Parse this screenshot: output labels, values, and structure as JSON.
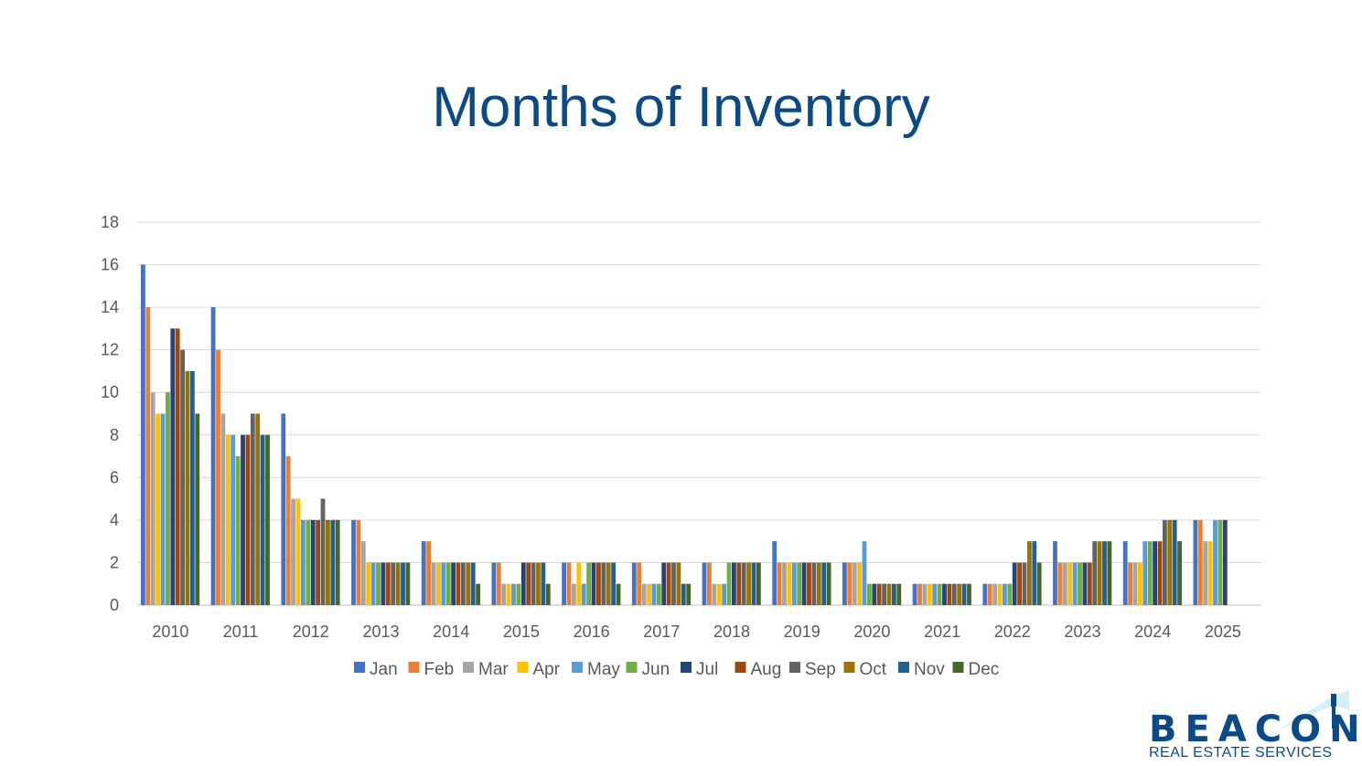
{
  "title": "Months of Inventory",
  "logo": {
    "wordmark": "BEACON",
    "tagline": "REAL ESTATE SERVICES"
  },
  "chart_data": {
    "type": "bar",
    "title": "Months of Inventory",
    "xlabel": "",
    "ylabel": "",
    "ylim": [
      0,
      18
    ],
    "yticks": [
      0,
      2,
      4,
      6,
      8,
      10,
      12,
      14,
      16,
      18
    ],
    "grid": true,
    "legend": "bottom",
    "categories": [
      "2010",
      "2011",
      "2012",
      "2013",
      "2014",
      "2015",
      "2016",
      "2017",
      "2018",
      "2019",
      "2020",
      "2021",
      "2022",
      "2023",
      "2024",
      "2025"
    ],
    "series": [
      {
        "name": "Jan",
        "color": "#4472c4",
        "values": [
          16,
          14,
          9,
          4,
          3,
          2,
          2,
          2,
          2,
          3,
          2,
          1,
          1,
          3,
          3,
          4
        ]
      },
      {
        "name": "Feb",
        "color": "#ed7d31",
        "values": [
          14,
          12,
          7,
          4,
          3,
          2,
          2,
          2,
          2,
          2,
          2,
          1,
          1,
          2,
          2,
          4
        ]
      },
      {
        "name": "Mar",
        "color": "#a5a5a5",
        "values": [
          10,
          9,
          5,
          3,
          2,
          1,
          1,
          1,
          1,
          2,
          2,
          1,
          1,
          2,
          2,
          3
        ]
      },
      {
        "name": "Apr",
        "color": "#ffc000",
        "values": [
          9,
          8,
          5,
          2,
          2,
          1,
          2,
          1,
          1,
          2,
          2,
          1,
          1,
          2,
          2,
          3
        ]
      },
      {
        "name": "May",
        "color": "#5b9bd5",
        "values": [
          9,
          8,
          4,
          2,
          2,
          1,
          1,
          1,
          1,
          2,
          3,
          1,
          1,
          2,
          3,
          4
        ]
      },
      {
        "name": "Jun",
        "color": "#70ad47",
        "values": [
          10,
          7,
          4,
          2,
          2,
          1,
          2,
          1,
          2,
          2,
          1,
          1,
          1,
          2,
          3,
          4
        ]
      },
      {
        "name": "Jul",
        "color": "#264478",
        "values": [
          13,
          8,
          4,
          2,
          2,
          2,
          2,
          2,
          2,
          2,
          1,
          1,
          2,
          2,
          3,
          4
        ]
      },
      {
        "name": "Aug",
        "color": "#9e480e",
        "values": [
          13,
          8,
          4,
          2,
          2,
          2,
          2,
          2,
          2,
          2,
          1,
          1,
          2,
          2,
          3,
          null
        ]
      },
      {
        "name": "Sep",
        "color": "#636363",
        "values": [
          12,
          9,
          5,
          2,
          2,
          2,
          2,
          2,
          2,
          2,
          1,
          1,
          2,
          3,
          4,
          null
        ]
      },
      {
        "name": "Oct",
        "color": "#997300",
        "values": [
          11,
          9,
          4,
          2,
          2,
          2,
          2,
          2,
          2,
          2,
          1,
          1,
          3,
          3,
          4,
          null
        ]
      },
      {
        "name": "Nov",
        "color": "#255e91",
        "values": [
          11,
          8,
          4,
          2,
          2,
          2,
          2,
          1,
          2,
          2,
          1,
          1,
          3,
          3,
          4,
          null
        ]
      },
      {
        "name": "Dec",
        "color": "#43682b",
        "values": [
          9,
          8,
          4,
          2,
          1,
          1,
          1,
          1,
          2,
          2,
          1,
          1,
          2,
          3,
          3,
          null
        ]
      }
    ]
  }
}
